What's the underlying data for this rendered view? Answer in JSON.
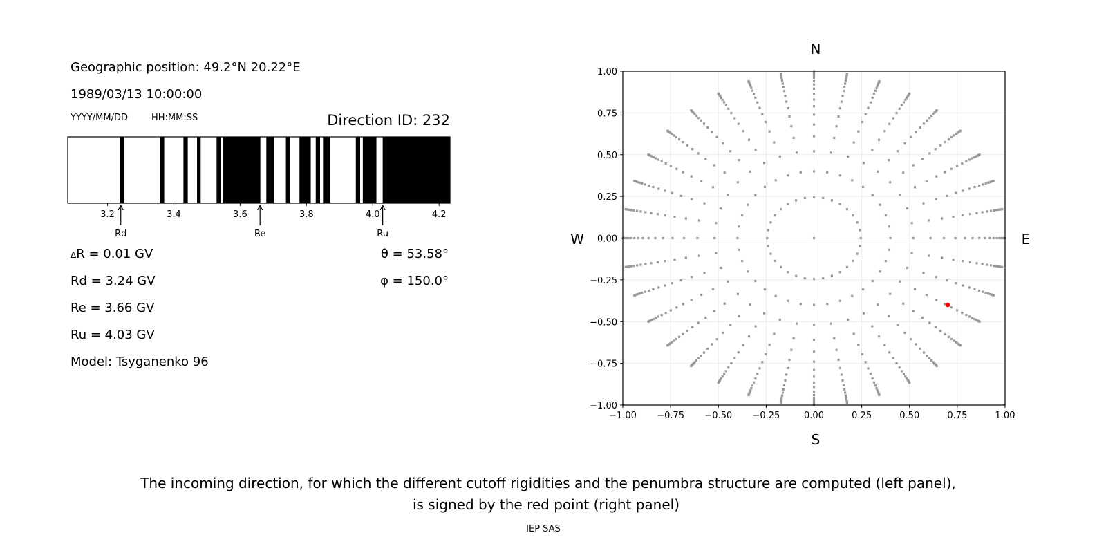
{
  "info": {
    "position": "Geographic position: 49.2°N 20.22°E",
    "datetime": "1989/03/13 10:00:00",
    "date_format": "YYYY/MM/DD",
    "time_format": "HH:MM:SS",
    "direction_id": "Direction ID: 232",
    "delta_r_symbol": "Δ",
    "delta_r": "R = 0.01 GV",
    "rd": "Rd = 3.24 GV",
    "re": "Re = 3.66 GV",
    "ru": "Ru = 4.03 GV",
    "model": "Model: Tsyganenko 96",
    "theta": "θ = 53.58°",
    "phi": "φ = 150.0°"
  },
  "caption": {
    "line1": "The incoming direction, for which the different cutoff rigidities and the penumbra structure are computed (left panel),",
    "line2": "is signed by the red point (right panel)",
    "credit": "IEP SAS"
  },
  "chart_data": [
    {
      "type": "penumbra-bar",
      "xlim": [
        3.08,
        4.233
      ],
      "xticks": [
        "3.2",
        "3.4",
        "3.6",
        "3.8",
        "4.0",
        "4.2"
      ],
      "xtick_values": [
        3.2,
        3.4,
        3.6,
        3.8,
        4.0,
        4.2
      ],
      "forbidden_bands": [
        [
          3.237,
          3.251
        ],
        [
          3.358,
          3.371
        ],
        [
          3.429,
          3.442
        ],
        [
          3.47,
          3.481
        ],
        [
          3.529,
          3.542
        ],
        [
          3.549,
          3.661
        ],
        [
          3.679,
          3.702
        ],
        [
          3.738,
          3.751
        ],
        [
          3.779,
          3.813
        ],
        [
          3.828,
          3.841
        ],
        [
          3.85,
          3.872
        ],
        [
          3.949,
          3.962
        ],
        [
          3.97,
          4.011
        ],
        [
          4.03,
          4.233
        ]
      ],
      "band_color": "#000000",
      "markers": [
        {
          "label": "Rd",
          "value": 3.24
        },
        {
          "label": "Re",
          "value": 3.66
        },
        {
          "label": "Ru",
          "value": 4.03
        }
      ]
    },
    {
      "type": "scatter",
      "xlim": [
        -1,
        1
      ],
      "ylim": [
        -1,
        1
      ],
      "grid": true,
      "xticks": [
        "−1.00",
        "−0.75",
        "−0.50",
        "−0.25",
        "0.00",
        "0.25",
        "0.50",
        "0.75",
        "1.00"
      ],
      "yticks": [
        "−1.00",
        "−0.75",
        "−0.50",
        "−0.25",
        "0.00",
        "0.25",
        "0.50",
        "0.75",
        "1.00"
      ],
      "tick_values": [
        -1,
        -0.75,
        -0.5,
        -0.25,
        0,
        0.25,
        0.5,
        0.75,
        1
      ],
      "compass": {
        "north": "N",
        "south": "S",
        "west": "W",
        "east": "E"
      },
      "directions_grid": {
        "ray_azimuth_step_deg": 10,
        "ray_radii": [
          0.4,
          0.52,
          0.61,
          0.68,
          0.74,
          0.79,
          0.83,
          0.865,
          0.895,
          0.92,
          0.94,
          0.957,
          0.97,
          0.98,
          0.988,
          0.994,
          0.998,
          1.0
        ],
        "inner_circle_radius": 0.245,
        "inner_circle_step_deg": 11.25,
        "center": [
          0,
          0
        ],
        "color": "#999999"
      },
      "selected_point": {
        "x": 0.7,
        "y": -0.4,
        "color": "#ff0000"
      }
    }
  ]
}
